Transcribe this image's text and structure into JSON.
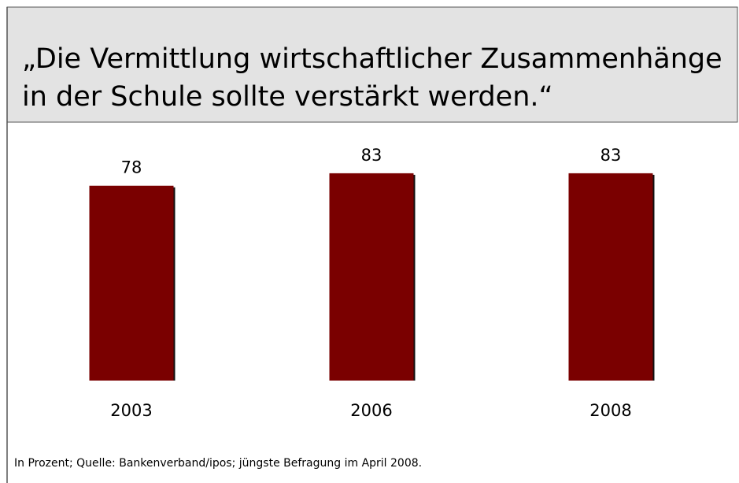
{
  "chart_data": {
    "type": "bar",
    "title": [
      "„Die Vermittlung wirtschaftlicher Zusammenhänge",
      "in der Schule sollte verstärkt werden.“"
    ],
    "categories": [
      "2003",
      "2006",
      "2008"
    ],
    "values": [
      78,
      83,
      83
    ],
    "color": "#7a0000",
    "note": "In Prozent; Quelle: Bankenverband/ipos; jüngste Befragung im April 2008."
  }
}
